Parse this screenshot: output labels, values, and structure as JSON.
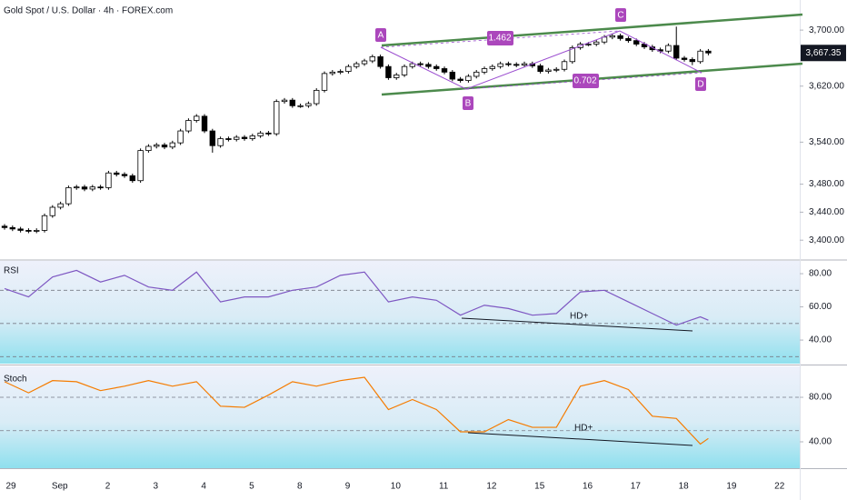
{
  "header": {
    "title": "Gold Spot / U.S. Dollar · 4h · FOREX.com"
  },
  "chart_data": [
    {
      "type": "candlestick",
      "up_color": "#ffffff",
      "down_color": "#000000",
      "open": [
        3420,
        3418,
        3416,
        3414,
        3413,
        3414,
        3435,
        3447,
        3452,
        3475,
        3476,
        3473,
        3476,
        3475,
        3496,
        3494,
        3492,
        3485,
        3528,
        3534,
        3536,
        3533,
        3539,
        3556,
        3571,
        3577,
        3556,
        3535,
        3545,
        3544,
        3547,
        3545,
        3549,
        3553,
        3552,
        3598,
        3600,
        3592,
        3592,
        3595,
        3614,
        3638,
        3640,
        3641,
        3648,
        3652,
        3656,
        3662,
        3648,
        3632,
        3636,
        3648,
        3652,
        3651,
        3648,
        3645,
        3640,
        3630,
        3628,
        3634,
        3640,
        3645,
        3648,
        3652,
        3651,
        3650,
        3652,
        3649,
        3641,
        3643,
        3644,
        3655,
        3675,
        3680,
        3680,
        3683,
        3690,
        3692,
        3688,
        3685,
        3680,
        3676,
        3672,
        3670,
        3678,
        3660,
        3658,
        3655,
        3670
      ],
      "high": [
        3423,
        3421,
        3419,
        3417,
        3417,
        3438,
        3450,
        3455,
        3478,
        3479,
        3479,
        3479,
        3479,
        3499,
        3499,
        3497,
        3495,
        3531,
        3537,
        3539,
        3539,
        3542,
        3559,
        3574,
        3580,
        3580,
        3559,
        3548,
        3548,
        3550,
        3550,
        3552,
        3556,
        3556,
        3601,
        3603,
        3603,
        3595,
        3598,
        3617,
        3641,
        3643,
        3644,
        3651,
        3655,
        3659,
        3665,
        3665,
        3651,
        3639,
        3651,
        3655,
        3655,
        3654,
        3651,
        3648,
        3643,
        3633,
        3637,
        3643,
        3648,
        3651,
        3655,
        3655,
        3654,
        3655,
        3655,
        3652,
        3646,
        3647,
        3658,
        3678,
        3683,
        3683,
        3686,
        3693,
        3695,
        3695,
        3691,
        3688,
        3683,
        3679,
        3675,
        3681,
        3705,
        3663,
        3661,
        3673,
        3673
      ],
      "low": [
        3415,
        3413,
        3411,
        3410,
        3410,
        3411,
        3432,
        3444,
        3449,
        3472,
        3470,
        3470,
        3472,
        3472,
        3491,
        3489,
        3482,
        3482,
        3525,
        3531,
        3530,
        3530,
        3536,
        3553,
        3568,
        3553,
        3525,
        3532,
        3541,
        3541,
        3542,
        3542,
        3546,
        3549,
        3549,
        3595,
        3589,
        3589,
        3589,
        3592,
        3611,
        3635,
        3637,
        3638,
        3645,
        3649,
        3653,
        3645,
        3629,
        3629,
        3633,
        3645,
        3648,
        3645,
        3642,
        3637,
        3627,
        3625,
        3625,
        3631,
        3637,
        3642,
        3645,
        3648,
        3647,
        3647,
        3646,
        3638,
        3638,
        3640,
        3641,
        3652,
        3672,
        3677,
        3677,
        3680,
        3687,
        3685,
        3682,
        3677,
        3673,
        3669,
        3667,
        3667,
        3657,
        3655,
        3650,
        3652,
        3664
      ],
      "close": [
        3418,
        3416,
        3414,
        3413,
        3414,
        3435,
        3447,
        3452,
        3475,
        3476,
        3473,
        3476,
        3475,
        3496,
        3494,
        3492,
        3485,
        3528,
        3534,
        3536,
        3533,
        3539,
        3556,
        3571,
        3577,
        3556,
        3535,
        3545,
        3544,
        3547,
        3545,
        3549,
        3553,
        3552,
        3598,
        3600,
        3592,
        3592,
        3595,
        3614,
        3638,
        3640,
        3641,
        3648,
        3652,
        3656,
        3662,
        3648,
        3632,
        3636,
        3648,
        3652,
        3651,
        3648,
        3645,
        3640,
        3630,
        3628,
        3634,
        3640,
        3645,
        3648,
        3652,
        3651,
        3650,
        3652,
        3649,
        3641,
        3643,
        3644,
        3655,
        3675,
        3680,
        3680,
        3683,
        3690,
        3692,
        3688,
        3685,
        3680,
        3676,
        3672,
        3670,
        3678,
        3660,
        3658,
        3655,
        3670,
        3667.35
      ],
      "last_price": {
        "value": 3667.35,
        "label": "3,667.35"
      },
      "xlim": [
        -0.57,
        99.43
      ],
      "xticks": [
        {
          "value": 0.8,
          "label": "29"
        },
        {
          "value": 6.9,
          "label": "Sep"
        },
        {
          "value": 12.9,
          "label": "2"
        },
        {
          "value": 18.9,
          "label": "3"
        },
        {
          "value": 24.9,
          "label": "4"
        },
        {
          "value": 30.9,
          "label": "5"
        },
        {
          "value": 36.9,
          "label": "8"
        },
        {
          "value": 42.9,
          "label": "9"
        },
        {
          "value": 48.9,
          "label": "10"
        },
        {
          "value": 54.9,
          "label": "11"
        },
        {
          "value": 60.9,
          "label": "12"
        },
        {
          "value": 66.9,
          "label": "15"
        },
        {
          "value": 72.9,
          "label": "16"
        },
        {
          "value": 78.9,
          "label": "17"
        },
        {
          "value": 84.9,
          "label": "18"
        },
        {
          "value": 90.9,
          "label": "19"
        },
        {
          "value": 96.9,
          "label": "22"
        }
      ],
      "ylim": [
        3373,
        3743
      ],
      "yticks": [
        {
          "value": 3700,
          "label": "3,700.00"
        },
        {
          "value": 3620,
          "label": "3,620.00"
        },
        {
          "value": 3540,
          "label": "3,540.00"
        },
        {
          "value": 3480,
          "label": "3,480.00"
        },
        {
          "value": 3440,
          "label": "3,440.00"
        },
        {
          "value": 3400,
          "label": "3,400.00"
        }
      ],
      "pattern_points": [
        "A",
        "B",
        "C",
        "D"
      ],
      "ratios": [
        1.462,
        0.702
      ]
    },
    {
      "type": "line",
      "title": "RSI",
      "color": "#7e57c2",
      "x": [
        0,
        3,
        6,
        9,
        12,
        15,
        18,
        21,
        24,
        27,
        30,
        33,
        36,
        39,
        42,
        45,
        48,
        51,
        54,
        57,
        60,
        63,
        66,
        69,
        72,
        75,
        78,
        81,
        84,
        87,
        88
      ],
      "values": [
        71,
        66,
        78,
        82,
        75,
        79,
        72,
        70,
        81,
        63,
        66,
        66,
        70,
        72,
        79,
        81,
        63,
        66,
        64,
        55,
        61,
        59,
        55,
        56,
        69,
        70,
        63,
        56,
        49,
        54,
        52
      ],
      "ylim": [
        25.8,
        87.7
      ],
      "yticks": [
        {
          "value": 80,
          "label": "80.00"
        },
        {
          "value": 60,
          "label": "60.00"
        },
        {
          "value": 40,
          "label": "40.00"
        }
      ],
      "bands": [
        70,
        50,
        30
      ],
      "annotation": "HD+"
    },
    {
      "type": "line",
      "title": "Stoch",
      "color": "#f57c00",
      "x": [
        0,
        3,
        6,
        9,
        12,
        15,
        18,
        21,
        24,
        27,
        30,
        33,
        36,
        39,
        42,
        45,
        48,
        51,
        54,
        57,
        60,
        63,
        66,
        69,
        72,
        75,
        78,
        81,
        84,
        87,
        88
      ],
      "values": [
        94,
        84,
        95,
        94,
        86,
        90,
        95,
        90,
        94,
        72,
        71,
        82,
        94,
        90,
        95,
        98,
        69,
        78,
        69,
        49,
        49,
        60,
        53,
        53,
        90,
        95,
        87,
        63,
        61,
        38,
        43
      ],
      "ylim": [
        16.3,
        107.8
      ],
      "yticks": [
        {
          "value": 80,
          "label": "80.00"
        },
        {
          "value": 40,
          "label": "40.00"
        }
      ],
      "bands": [
        80,
        50
      ],
      "annotation": "HD+"
    }
  ]
}
